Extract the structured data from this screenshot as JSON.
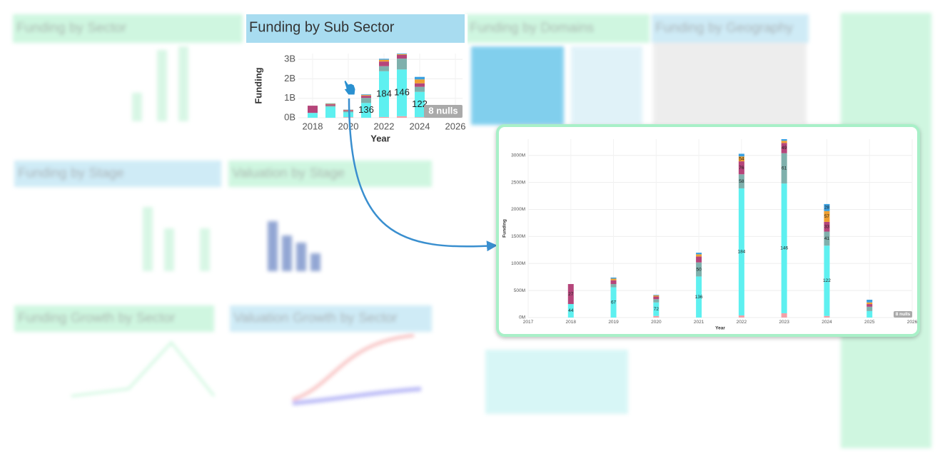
{
  "background_panels": [
    {
      "title": "Funding by Sector",
      "color": "#a8f0c8"
    },
    {
      "title": "Funding by Domains",
      "color": "#a8f0c8"
    },
    {
      "title": "Funding by Geography",
      "color": "#a8dcf0"
    },
    {
      "title": "Funding by Stage",
      "color": "#a8dcf0"
    },
    {
      "title": "Valuation by Stage",
      "color": "#a8f0c8"
    },
    {
      "title": "Funding Growth by Sector",
      "color": "#a8f0c8"
    },
    {
      "title": "Valuation Growth by Sector",
      "color": "#a8dcf0"
    }
  ],
  "chart_data": [
    {
      "type": "bar",
      "stacked": true,
      "title": "Funding by Sub Sector",
      "title_color": "#a8dcf0",
      "x_label": "Year",
      "y_label": "Funding",
      "nulls_badge": "8 nulls",
      "x": [
        2018,
        2019,
        2020,
        2021,
        2022,
        2023,
        2024,
        2025
      ],
      "xlim": [
        2017.2,
        2026.4
      ],
      "xticks": [
        2018,
        2020,
        2022,
        2024,
        2026
      ],
      "ylim": [
        0,
        3300
      ],
      "yticks": [
        {
          "value": 0,
          "label": "0B"
        },
        {
          "value": 1000,
          "label": "1B"
        },
        {
          "value": 2000,
          "label": "2B"
        },
        {
          "value": 3000,
          "label": "3B"
        }
      ],
      "grid": true,
      "series": [
        {
          "color": "#f4a0a8",
          "values": [
            0,
            0,
            30,
            0,
            40,
            80,
            30,
            0
          ]
        },
        {
          "color": "#5ef0f0",
          "values": [
            250,
            560,
            250,
            760,
            2350,
            2400,
            1300,
            120
          ],
          "counts": [
            null,
            null,
            null,
            136,
            184,
            146,
            122,
            null
          ]
        },
        {
          "color": "#7fb0ac",
          "values": [
            0,
            60,
            60,
            260,
            260,
            560,
            260,
            80
          ]
        },
        {
          "color": "#b5457a",
          "values": [
            370,
            70,
            50,
            110,
            240,
            190,
            180,
            50
          ]
        },
        {
          "color": "#f0a030",
          "values": [
            0,
            30,
            20,
            40,
            90,
            40,
            200,
            30
          ]
        },
        {
          "color": "#3aa0e0",
          "values": [
            0,
            20,
            10,
            30,
            50,
            30,
            130,
            50
          ]
        }
      ]
    },
    {
      "type": "bar",
      "stacked": true,
      "x_label": "Year",
      "y_label": "Funding",
      "nulls_badge": "8 nulls",
      "x": [
        2018,
        2019,
        2020,
        2021,
        2022,
        2023,
        2024,
        2025
      ],
      "xlim": [
        2017,
        2026
      ],
      "xticks": [
        2017,
        2018,
        2019,
        2020,
        2021,
        2022,
        2023,
        2024,
        2025,
        2026
      ],
      "ylim": [
        0,
        3300
      ],
      "yticks": [
        {
          "value": 0,
          "label": "0M"
        },
        {
          "value": 500,
          "label": "500M"
        },
        {
          "value": 1000,
          "label": "1000M"
        },
        {
          "value": 1500,
          "label": "1500M"
        },
        {
          "value": 2000,
          "label": "2000M"
        },
        {
          "value": 2500,
          "label": "2500M"
        },
        {
          "value": 3000,
          "label": "3000M"
        }
      ],
      "grid": true,
      "series": [
        {
          "color": "#f4a0a8",
          "values": [
            0,
            0,
            30,
            0,
            40,
            80,
            30,
            0
          ]
        },
        {
          "color": "#5ef0f0",
          "values": [
            250,
            560,
            250,
            760,
            2350,
            2400,
            1300,
            120
          ],
          "counts": [
            44,
            67,
            72,
            136,
            184,
            146,
            122,
            null
          ]
        },
        {
          "color": "#7fb0ac",
          "values": [
            0,
            60,
            60,
            260,
            260,
            560,
            260,
            80
          ],
          "counts": [
            null,
            null,
            null,
            50,
            58,
            61,
            41,
            null
          ]
        },
        {
          "color": "#b5457a",
          "values": [
            370,
            70,
            50,
            110,
            240,
            190,
            180,
            50
          ],
          "counts": [
            27,
            null,
            null,
            null,
            76,
            49,
            33,
            null
          ]
        },
        {
          "color": "#f0a030",
          "values": [
            0,
            30,
            20,
            40,
            90,
            40,
            200,
            30
          ],
          "counts": [
            null,
            null,
            null,
            null,
            54,
            null,
            57,
            null
          ]
        },
        {
          "color": "#3aa0e0",
          "values": [
            0,
            20,
            10,
            30,
            50,
            30,
            130,
            50
          ],
          "counts": [
            null,
            null,
            null,
            null,
            null,
            null,
            28,
            null
          ]
        }
      ]
    }
  ]
}
